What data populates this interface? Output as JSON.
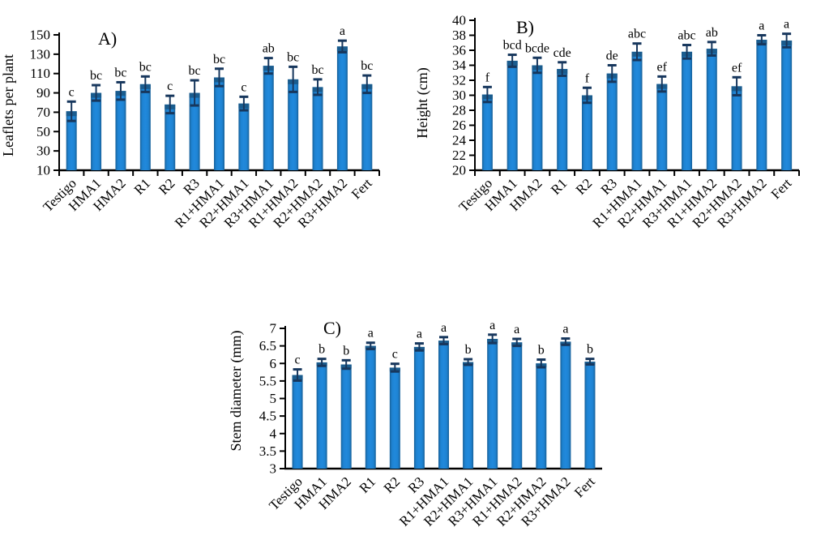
{
  "figure": {
    "title": "Plant growth parameters bar charts",
    "colors": {
      "bar_fill_center": "#2189dc",
      "bar_fill_mid": "#1e83d2",
      "bar_fill_edge": "#186098",
      "bar_top_cap": "#1a5c8e",
      "error_bar": "#17375d",
      "axis": "#000000",
      "text": "#000000",
      "background": "#ffffff"
    }
  },
  "chart_data": [
    {
      "id": "A",
      "type": "bar",
      "panel_label": "A)",
      "ylabel": "Leaflets per plant",
      "xlabel": "",
      "ylim": [
        10,
        150
      ],
      "ytick_step": 20,
      "grid": false,
      "legend": "none",
      "categories": [
        "Testigo",
        "HMA1",
        "HMA2",
        "R1",
        "R2",
        "R3",
        "R1+HMA1",
        "R2+HMA1",
        "R3+HMA1",
        "R1+HMA2",
        "R2+HMA2",
        "R3+HMA2",
        "Fert"
      ],
      "values": [
        71,
        90,
        92,
        99,
        78,
        90,
        106,
        79,
        118,
        104,
        96,
        138,
        99
      ],
      "errors": [
        10,
        8,
        9,
        8,
        9,
        13,
        9,
        7,
        8,
        13,
        8,
        6,
        9
      ],
      "sig_letters": [
        "c",
        "bc",
        "bc",
        "bc",
        "c",
        "bc",
        "bc",
        "c",
        "ab",
        "bc",
        "bc",
        "a",
        "bc"
      ],
      "x_ticks": true
    },
    {
      "id": "B",
      "type": "bar",
      "panel_label": "B)",
      "ylabel": "Height (cm)",
      "xlabel": "",
      "ylim": [
        20,
        40
      ],
      "ytick_step": 2,
      "grid": false,
      "legend": "none",
      "categories": [
        "Testigo",
        "HMA1",
        "HMA2",
        "R1",
        "R2",
        "R3",
        "R1+HMA1",
        "R2+HMA1",
        "R3+HMA1",
        "R1+HMA2",
        "R2+HMA2",
        "R3+HMA2",
        "Fert"
      ],
      "values": [
        30.1,
        34.6,
        34.0,
        33.5,
        30.0,
        32.9,
        35.8,
        31.5,
        35.8,
        36.2,
        31.2,
        37.4,
        37.3
      ],
      "errors": [
        1.0,
        0.8,
        1.0,
        0.9,
        1.0,
        1.1,
        1.1,
        1.0,
        0.9,
        0.9,
        1.2,
        0.6,
        0.9
      ],
      "sig_letters": [
        "f",
        "bcd",
        "bcde",
        "cde",
        "f",
        "de",
        "abc",
        "ef",
        "abc",
        "ab",
        "ef",
        "a",
        "a"
      ],
      "x_ticks": true
    },
    {
      "id": "C",
      "type": "bar",
      "panel_label": "C)",
      "ylabel": "Stem diameter (mm)",
      "xlabel": "",
      "ylim": [
        3,
        7
      ],
      "ytick_step": 0.5,
      "grid": false,
      "legend": "none",
      "categories": [
        "Testigo",
        "HMA1",
        "HMA2",
        "R1",
        "R2",
        "R3",
        "R1+HMA1",
        "R2+HMA1",
        "R3+HMA1",
        "R1+HMA2",
        "R2+HMA2",
        "R3+HMA2",
        "Fert"
      ],
      "values": [
        5.67,
        6.03,
        5.97,
        6.5,
        5.88,
        6.47,
        6.65,
        6.04,
        6.7,
        6.6,
        6.0,
        6.62,
        6.05
      ],
      "errors": [
        0.16,
        0.1,
        0.12,
        0.09,
        0.11,
        0.1,
        0.1,
        0.08,
        0.12,
        0.1,
        0.11,
        0.09,
        0.08
      ],
      "sig_letters": [
        "c",
        "b",
        "b",
        "a",
        "c",
        "a",
        "a",
        "b",
        "a",
        "a",
        "b",
        "a",
        "b"
      ],
      "x_ticks": false
    }
  ]
}
